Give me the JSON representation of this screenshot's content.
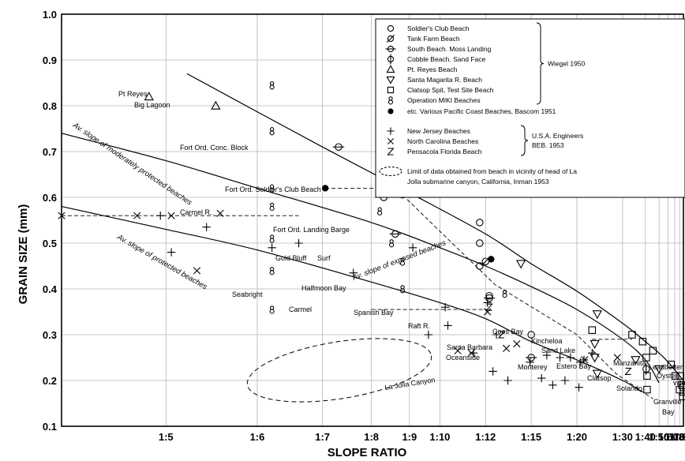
{
  "chart_data": {
    "type": "scatter",
    "xlabel": "SLOPE RATIO",
    "ylabel": "GRAIN SIZE (mm)",
    "xscale": "reciprocal",
    "xlim": [
      "1:4.2",
      "1:90"
    ],
    "ylim": [
      0.1,
      1.0
    ],
    "y_ticks": [
      "0.1",
      "0.2",
      "0.3",
      "0.4",
      "0.5",
      "0.6",
      "0.7",
      "0.8",
      "0.9",
      "1.0"
    ],
    "x_ticks": [
      "1:5",
      "1:6",
      "1:7",
      "1:8",
      "1:9",
      "1:10",
      "1:12",
      "1:15",
      "1:20",
      "1:30",
      "1:40",
      "1:50",
      "1:60",
      "1:70",
      "1:80",
      "1:90"
    ],
    "grid": true,
    "legend": {
      "position": "top-right",
      "groups": [
        {
          "source": "Wiegel 1950",
          "entries": [
            {
              "symbol": "circle",
              "label": "Soldier's Club Beach"
            },
            {
              "symbol": "circle-slash",
              "label": "Tank Farm Beach"
            },
            {
              "symbol": "circle-hbar",
              "label": "South Beach. Moss Landing"
            },
            {
              "symbol": "circle-vbar",
              "label": "Cobble Beach. Sand Face"
            },
            {
              "symbol": "triangle-up",
              "label": "Pt. Reyes Beach"
            },
            {
              "symbol": "triangle-down",
              "label": "Santa Magarita R. Beach"
            },
            {
              "symbol": "square",
              "label": "Clatsop Spit, Test Site Beach"
            },
            {
              "symbol": "eight",
              "label": "Operation MIKI Beaches"
            }
          ]
        },
        {
          "source": "",
          "entries": [
            {
              "symbol": "filled-circle",
              "label": "etc. Various Pacific Coast Beaches, Bascom 1951"
            }
          ]
        },
        {
          "source": "U.S.A. Engineers BEB. 1953",
          "entries": [
            {
              "symbol": "plus",
              "label": "New Jersey Beaches"
            },
            {
              "symbol": "x",
              "label": "North Carolina Beaches"
            },
            {
              "symbol": "z",
              "label": "Pensacola Florida Beach"
            }
          ]
        },
        {
          "source": "",
          "entries": [
            {
              "symbol": "dashed-ellipse",
              "label": "Limit of data obtained from beach in vicinity of head of La Jolla submarine canyon, California, Inman 1953"
            }
          ]
        }
      ]
    },
    "curves": [
      {
        "name": "Av. slope of exposed beaches",
        "points": [
          [
            5.2,
            0.87
          ],
          [
            7,
            0.71
          ],
          [
            9,
            0.61
          ],
          [
            12,
            0.52
          ],
          [
            15,
            0.455
          ],
          [
            20,
            0.395
          ],
          [
            30,
            0.325
          ],
          [
            40,
            0.285
          ],
          [
            50,
            0.26
          ],
          [
            60,
            0.24
          ],
          [
            90,
            0.2
          ]
        ]
      },
      {
        "name": "Av. slope of moderately protected beaches",
        "points": [
          [
            4.2,
            0.74
          ],
          [
            5,
            0.68
          ],
          [
            6,
            0.62
          ],
          [
            8,
            0.545
          ],
          [
            10,
            0.49
          ],
          [
            12,
            0.45
          ],
          [
            15,
            0.405
          ],
          [
            20,
            0.355
          ],
          [
            30,
            0.29
          ],
          [
            40,
            0.245
          ],
          [
            50,
            0.195
          ]
        ]
      },
      {
        "name": "Av. slope of protected beaches",
        "points": [
          [
            4.2,
            0.58
          ],
          [
            5,
            0.53
          ],
          [
            6,
            0.485
          ],
          [
            8,
            0.415
          ],
          [
            10,
            0.37
          ],
          [
            12,
            0.335
          ],
          [
            15,
            0.285
          ],
          [
            20,
            0.245
          ],
          [
            30,
            0.2
          ],
          [
            38,
            0.175
          ]
        ]
      }
    ],
    "series": [
      {
        "name": "Soldier's Club Beach",
        "symbol": "circle",
        "points": [
          [
            8.3,
            0.73
          ],
          [
            8.3,
            0.65
          ],
          [
            8.3,
            0.6
          ],
          [
            11.7,
            0.545
          ],
          [
            11.7,
            0.5
          ],
          [
            11.7,
            0.45
          ],
          [
            12.2,
            0.385
          ],
          [
            15,
            0.3
          ]
        ]
      },
      {
        "name": "Tank Farm Beach",
        "symbol": "circle-slash",
        "points": [
          [
            12,
            0.46
          ]
        ]
      },
      {
        "name": "South Beach. Moss Landing",
        "symbol": "circle-hbar",
        "points": [
          [
            7.3,
            0.71
          ],
          [
            8.6,
            0.52
          ],
          [
            12.2,
            0.38
          ],
          [
            15,
            0.25
          ]
        ]
      },
      {
        "name": "Cobble Beach. Sand Face",
        "symbol": "circle-vbar",
        "points": [
          [
            40.5,
            0.225
          ]
        ]
      },
      {
        "name": "Pt. Reyes Beach",
        "symbol": "triangle-up",
        "points": [
          [
            4.85,
            0.82
          ],
          [
            5.5,
            0.8
          ],
          [
            8.3,
            0.81
          ],
          [
            8.3,
            0.775
          ]
        ]
      },
      {
        "name": "Santa Magarita R. Beach",
        "symbol": "triangle-down",
        "points": [
          [
            14.2,
            0.455
          ],
          [
            23.5,
            0.345
          ],
          [
            23,
            0.28
          ],
          [
            23,
            0.25
          ],
          [
            23.5,
            0.215
          ],
          [
            35,
            0.245
          ],
          [
            50,
            0.225
          ]
        ]
      },
      {
        "name": "Clatsop Spit, Test Site Beach",
        "symbol": "square",
        "points": [
          [
            22.5,
            0.31
          ],
          [
            33.5,
            0.3
          ],
          [
            38.5,
            0.285
          ],
          [
            40.5,
            0.25
          ],
          [
            41,
            0.21
          ],
          [
            41,
            0.18
          ],
          [
            45,
            0.265
          ],
          [
            64,
            0.235
          ],
          [
            71,
            0.21
          ],
          [
            80,
            0.18
          ],
          [
            82,
            0.21
          ],
          [
            86,
            0.19
          ],
          [
            88,
            0.165
          ],
          [
            90,
            0.175
          ],
          [
            90,
            0.185
          ]
        ]
      },
      {
        "name": "Operation MIKI Beaches",
        "symbol": "eight",
        "points": [
          [
            6.2,
            0.845
          ],
          [
            6.2,
            0.745
          ],
          [
            6.2,
            0.62
          ],
          [
            6.2,
            0.58
          ],
          [
            6.2,
            0.51
          ],
          [
            6.2,
            0.44
          ],
          [
            6.2,
            0.355
          ],
          [
            8.4,
            0.78
          ],
          [
            8.4,
            0.69
          ],
          [
            8.4,
            0.625
          ],
          [
            8.2,
            0.57
          ],
          [
            8.5,
            0.5
          ],
          [
            8.8,
            0.46
          ],
          [
            8.8,
            0.4
          ],
          [
            13.1,
            0.39
          ]
        ]
      },
      {
        "name": "Various Pacific Coast Beaches",
        "symbol": "filled-circle",
        "points": [
          [
            7.05,
            0.62
          ],
          [
            8.8,
            0.605
          ],
          [
            12.3,
            0.465
          ]
        ]
      },
      {
        "name": "New Jersey Beaches",
        "symbol": "plus",
        "points": [
          [
            4.95,
            0.56
          ],
          [
            5.4,
            0.535
          ],
          [
            6.2,
            0.49
          ],
          [
            6.6,
            0.5
          ],
          [
            5.05,
            0.48
          ],
          [
            7.6,
            0.435
          ],
          [
            9.1,
            0.49
          ],
          [
            9.6,
            0.3
          ],
          [
            10.2,
            0.36
          ],
          [
            10.3,
            0.32
          ],
          [
            11.4,
            0.26
          ],
          [
            12.1,
            0.37
          ],
          [
            12.4,
            0.22
          ],
          [
            12.6,
            0.3
          ],
          [
            13.3,
            0.2
          ],
          [
            14.9,
            0.24
          ],
          [
            15.9,
            0.205
          ],
          [
            16.4,
            0.255
          ],
          [
            17,
            0.19
          ],
          [
            17.8,
            0.25
          ],
          [
            18.4,
            0.2
          ],
          [
            19.1,
            0.25
          ],
          [
            20.3,
            0.185
          ],
          [
            20.5,
            0.24
          ],
          [
            21.1,
            0.245
          ],
          [
            22.5,
            0.26
          ]
        ]
      },
      {
        "name": "North Carolina Beaches",
        "symbol": "x",
        "points": [
          [
            4.2,
            0.56
          ],
          [
            4.75,
            0.56
          ],
          [
            5.05,
            0.56
          ],
          [
            5.55,
            0.565
          ],
          [
            5.3,
            0.44
          ],
          [
            10.7,
            0.265
          ],
          [
            11.3,
            0.26
          ],
          [
            12.1,
            0.35
          ],
          [
            13.2,
            0.27
          ],
          [
            13.9,
            0.28
          ],
          [
            21.2,
            0.245
          ],
          [
            28.4,
            0.25
          ]
        ]
      },
      {
        "name": "Pensacola Florida Beach",
        "symbol": "z",
        "points": [
          [
            12.2,
            0.36
          ],
          [
            12.9,
            0.3
          ],
          [
            32,
            0.22
          ]
        ]
      }
    ],
    "annotations": [
      "Pt Reyes",
      "Big Lagoon",
      "Fort Ord. Conc. Block",
      "Fort Ord. Soldier's Club Beach",
      "Carmel R.",
      "Fort Ord. Landing Barge",
      "Gold Bluff",
      "Surf",
      "Halfmoon Bay",
      "Seabright",
      "Carmel",
      "Spanish Bay",
      "Raft R.",
      "Coos Bay",
      "Kincheloa",
      "Sand Lake",
      "Santa Barbara",
      "Oceanside",
      "Monterey",
      "Estero Bay",
      "Clatsop",
      "Manzanita",
      "Solando",
      "Leadbetter",
      "Oyster",
      "ville",
      "Granville",
      "Bay",
      "La Jolla Canyon"
    ]
  }
}
